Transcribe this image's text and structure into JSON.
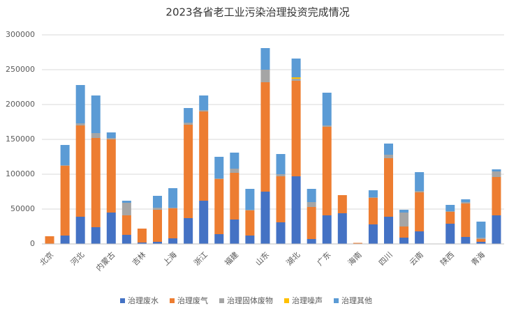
{
  "chart_data": {
    "type": "bar",
    "stacked": true,
    "title": "2023各省老工业污染治理投资完成情况",
    "categories": [
      "北京",
      null,
      "河北",
      null,
      "内蒙古",
      null,
      "吉林",
      null,
      "上海",
      null,
      "浙江",
      null,
      "福建",
      null,
      "山东",
      null,
      "湖北",
      null,
      "广东",
      null,
      "海南",
      null,
      "四川",
      null,
      "云南",
      null,
      "陕西",
      null,
      "青海",
      null
    ],
    "series": [
      {
        "name": "治理废水",
        "color": "#4472c4",
        "values": [
          0,
          12000,
          39000,
          24000,
          45000,
          13000,
          2000,
          3000,
          8000,
          37000,
          62000,
          14000,
          35000,
          12000,
          75000,
          31000,
          97000,
          7000,
          41000,
          44000,
          0,
          28000,
          39000,
          9000,
          18000,
          0,
          29000,
          10000,
          3000,
          41000
        ]
      },
      {
        "name": "治理废气",
        "color": "#ed7d31",
        "values": [
          11000,
          100000,
          131000,
          128000,
          105000,
          28000,
          20000,
          46000,
          43000,
          134000,
          128000,
          79000,
          67000,
          36000,
          157000,
          66000,
          137000,
          46000,
          127000,
          26000,
          1500,
          38000,
          84000,
          16000,
          56000,
          500,
          17000,
          48000,
          4000,
          55000
        ]
      },
      {
        "name": "治理固体废物",
        "color": "#a5a5a5",
        "values": [
          0,
          1000,
          3000,
          7000,
          2000,
          18000,
          0,
          3000,
          1000,
          3000,
          2000,
          1000,
          6000,
          1000,
          18000,
          3000,
          3000,
          7000,
          2000,
          0,
          0,
          1000,
          5000,
          20000,
          2000,
          0,
          1000,
          2000,
          2000,
          8000
        ]
      },
      {
        "name": "治理噪声",
        "color": "#ffc000",
        "values": [
          0,
          0,
          0,
          0,
          0,
          0,
          0,
          0,
          0,
          0,
          0,
          0,
          0,
          0,
          0,
          0,
          2000,
          0,
          0,
          0,
          0,
          0,
          0,
          0,
          0,
          0,
          0,
          0,
          0,
          0
        ]
      },
      {
        "name": "治理其他",
        "color": "#5b9bd5",
        "values": [
          0,
          29000,
          55000,
          54000,
          8000,
          3000,
          0,
          17000,
          28000,
          21000,
          21000,
          31000,
          23000,
          30000,
          31000,
          29000,
          27000,
          19000,
          47000,
          0,
          0,
          10000,
          16000,
          4000,
          27000,
          0,
          9000,
          4000,
          23000,
          3000
        ]
      }
    ],
    "ylim": [
      0,
      300000
    ],
    "yticks": [
      0,
      50000,
      100000,
      150000,
      200000,
      250000,
      300000
    ],
    "grid": true,
    "legend": "bottom"
  }
}
